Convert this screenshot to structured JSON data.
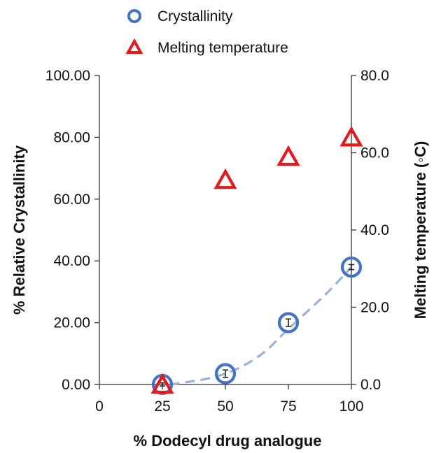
{
  "chart_data": {
    "type": "scatter",
    "xlabel": "% Dodecyl drug analogue",
    "ylabel_left": "% Relative Crystallinity",
    "ylabel_right": "Melting temperature (◦C)",
    "xlim": [
      0,
      100
    ],
    "ylim_left": [
      0,
      100
    ],
    "ylim_right": [
      0,
      80
    ],
    "x_ticks": [
      0,
      25,
      50,
      75,
      100
    ],
    "x_tick_labels": [
      "0",
      "25",
      "50",
      "75",
      "100"
    ],
    "y_left_ticks": [
      0,
      20,
      40,
      60,
      80,
      100
    ],
    "y_left_tick_labels": [
      "0.00",
      "20.00",
      "40.00",
      "60.00",
      "80.00",
      "100.00"
    ],
    "y_right_ticks": [
      0,
      20,
      40,
      60,
      80
    ],
    "y_right_tick_labels": [
      "0.0",
      "20.0",
      "40.0",
      "60.0",
      "80.0"
    ],
    "grid": false,
    "legend_position": "top",
    "series": [
      {
        "name": "Crystallinity",
        "axis": "left",
        "marker": "circle",
        "color": "#4472C4",
        "x": [
          25,
          50,
          75,
          100
        ],
        "y": [
          0,
          3.5,
          20,
          38
        ],
        "error": [
          0.5,
          1.2,
          1.2,
          0.8
        ]
      },
      {
        "name": "Melting temperature",
        "axis": "right",
        "marker": "triangle",
        "color": "#E31A1C",
        "x": [
          25,
          50,
          75,
          100
        ],
        "y": [
          0,
          53,
          59,
          64
        ]
      }
    ],
    "trendline": {
      "series": "Crystallinity",
      "style": "dashed",
      "color": "#9BB1DB",
      "x": [
        28,
        35,
        45,
        55,
        65,
        75,
        85,
        92,
        100
      ],
      "y": [
        0,
        0.8,
        2.3,
        5.2,
        10.2,
        18.0,
        25.5,
        31.0,
        38.0
      ]
    }
  }
}
